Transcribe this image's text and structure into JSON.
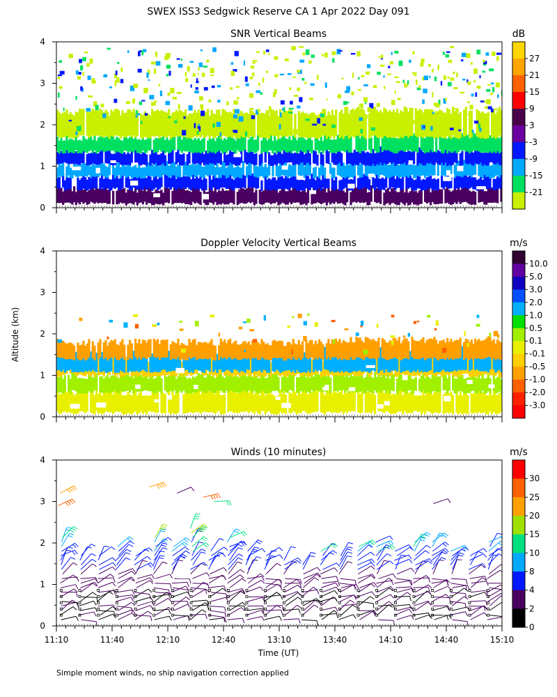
{
  "figure": {
    "title": "SWEX ISS3 Sedgwick Reserve CA   1 Apr 2022 Day 091",
    "y_axis_label": "Altitude (km)",
    "footnote": "Simple moment winds, no ship navigation correction applied"
  },
  "chart_data": [
    {
      "type": "heatmap",
      "title": "SNR Vertical Beams",
      "xlabel": "",
      "ylabel": "Altitude (km)",
      "xlim": [
        670,
        910
      ],
      "ylim": [
        0,
        4
      ],
      "y_ticks": [
        "0",
        "1",
        "2",
        "3",
        "4"
      ],
      "colorbar": {
        "unit": "dB",
        "labels": [
          "27",
          "21",
          "15",
          "9",
          "3",
          "-3",
          "-9",
          "-15",
          "-21"
        ],
        "colors": [
          "#ffd700",
          "#ffa500",
          "#ff6000",
          "#ff0000",
          "#4a004a",
          "#6a00a0",
          "#0018ff",
          "#00a8ff",
          "#00e060",
          "#c8f000"
        ]
      },
      "layers": [
        {
          "y_range": [
            0.1,
            0.45
          ],
          "level_db": 10,
          "color": "#4a0060"
        },
        {
          "y_range": [
            0.45,
            0.75
          ],
          "level_db": -3,
          "color": "#0018ff"
        },
        {
          "y_range": [
            0.75,
            1.05
          ],
          "level_db": -9,
          "color": "#00a8ff"
        },
        {
          "y_range": [
            1.05,
            1.35
          ],
          "level_db": -3,
          "color": "#0018ff"
        },
        {
          "y_range": [
            1.35,
            1.7
          ],
          "level_db": -15,
          "color": "#00e060"
        },
        {
          "y_range": [
            1.7,
            2.3
          ],
          "level_db": -21,
          "color": "#c8f000"
        }
      ]
    },
    {
      "type": "heatmap",
      "title": "Doppler Velocity Vertical Beams",
      "xlabel": "",
      "ylabel": "Altitude (km)",
      "xlim": [
        670,
        910
      ],
      "ylim": [
        0,
        4
      ],
      "y_ticks": [
        "0",
        "1",
        "2",
        "3",
        "4"
      ],
      "colorbar": {
        "unit": "m/s",
        "labels": [
          "10.0",
          "5.0",
          "3.0",
          "2.0",
          "1.0",
          "0.5",
          "0.1",
          "-0.1",
          "-0.5",
          "-1.0",
          "-2.0",
          "-3.0"
        ],
        "colors": [
          "#300030",
          "#6000a0",
          "#1000c0",
          "#0050ff",
          "#00b0ff",
          "#00e000",
          "#a0f000",
          "#e8f000",
          "#ffd000",
          "#ffa000",
          "#ff6000",
          "#ff2000",
          "#ff0000"
        ]
      },
      "layers": [
        {
          "y_range": [
            0.1,
            0.6
          ],
          "level_ms": -0.1,
          "color": "#e8f000"
        },
        {
          "y_range": [
            0.6,
            1.0
          ],
          "level_ms": 0.1,
          "color": "#a0f000"
        },
        {
          "y_range": [
            1.0,
            1.4
          ],
          "level_ms": -0.5,
          "color": "#ffd000"
        },
        {
          "y_range": [
            1.1,
            1.6
          ],
          "level_ms": 1.0,
          "color": "#00b0ff"
        },
        {
          "y_range": [
            1.4,
            1.8
          ],
          "level_ms": -1.0,
          "color": "#ffa000"
        }
      ]
    },
    {
      "type": "scatter",
      "title": "Winds (10 minutes)",
      "xlabel": "Time (UT)",
      "ylabel": "Altitude (km)",
      "xlim": [
        670,
        910
      ],
      "ylim": [
        0,
        4
      ],
      "x_ticks": [
        670,
        700,
        730,
        760,
        790,
        820,
        850,
        880,
        910
      ],
      "x_tick_labels": [
        "11:10",
        "11:40",
        "12:10",
        "12:40",
        "13:10",
        "13:40",
        "14:10",
        "14:40",
        "15:10"
      ],
      "y_ticks": [
        "0",
        "1",
        "2",
        "3",
        "4"
      ],
      "colorbar": {
        "unit": "m/s",
        "labels": [
          "30",
          "25",
          "20",
          "15",
          "10",
          "8",
          "4",
          "2",
          "0"
        ],
        "colors": [
          "#ff0000",
          "#ff6000",
          "#ffa000",
          "#a0e000",
          "#00e080",
          "#00a8ff",
          "#0018ff",
          "#4a0060",
          "#000000"
        ]
      },
      "profile_times": [
        675,
        685,
        695,
        705,
        715,
        725,
        735,
        745,
        755,
        765,
        775,
        785,
        795,
        805,
        815,
        825,
        835,
        845,
        855,
        865,
        875,
        885,
        895,
        905
      ],
      "profile_tops_km": [
        2.2,
        1.8,
        1.7,
        2.0,
        1.8,
        2.2,
        2.0,
        2.4,
        1.9,
        2.2,
        1.9,
        1.8,
        1.6,
        1.5,
        1.9,
        1.8,
        2.0,
        2.1,
        1.9,
        2.1,
        2.1,
        1.9,
        1.8,
        2.1
      ],
      "speed_profile_ms": [
        {
          "alt_km": 0.3,
          "speed": 2
        },
        {
          "alt_km": 0.8,
          "speed": 3
        },
        {
          "alt_km": 1.3,
          "speed": 6
        },
        {
          "alt_km": 1.7,
          "speed": 9
        },
        {
          "alt_km": 2.1,
          "speed": 14
        }
      ],
      "upper_winds": [
        {
          "t": 671,
          "alt_km": 2.9,
          "speed": 28
        },
        {
          "t": 672,
          "alt_km": 3.2,
          "speed": 23
        },
        {
          "t": 720,
          "alt_km": 3.35,
          "speed": 21
        },
        {
          "t": 735,
          "alt_km": 3.2,
          "speed": 3
        },
        {
          "t": 749,
          "alt_km": 3.1,
          "speed": 27
        },
        {
          "t": 755,
          "alt_km": 3.0,
          "speed": 12
        },
        {
          "t": 873,
          "alt_km": 2.95,
          "speed": 3
        }
      ]
    }
  ]
}
